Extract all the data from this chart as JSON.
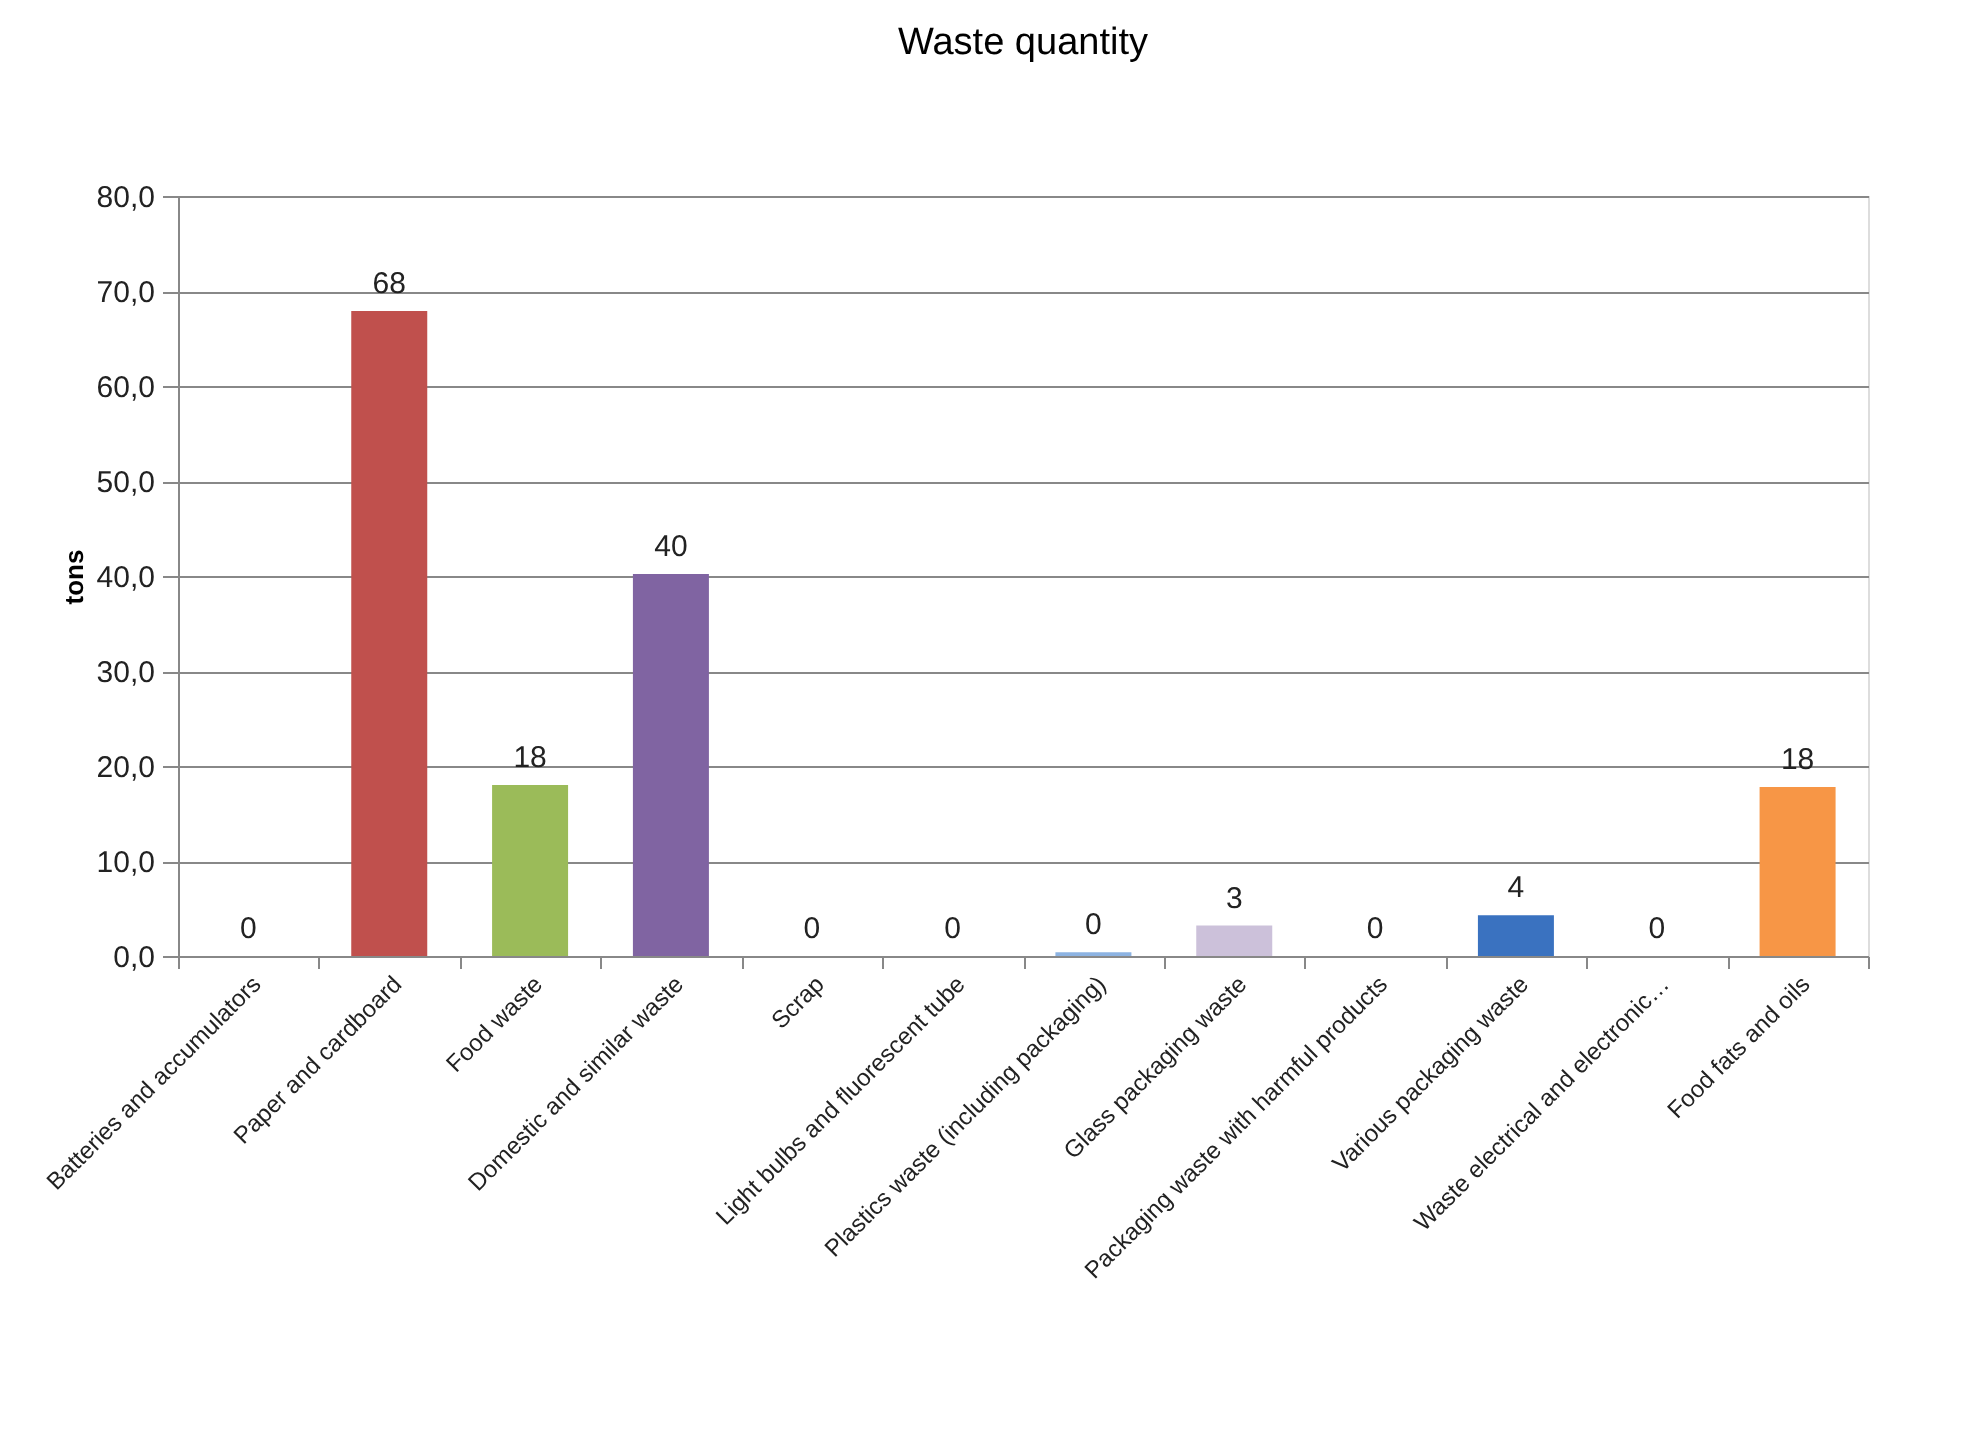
{
  "chart_data": {
    "type": "bar",
    "title": "Waste quantity",
    "ylabel": "tons",
    "categories": [
      "Batteries and accumulators",
      "Paper and cardboard",
      "Food waste",
      "Domestic and similar waste",
      "Scrap",
      "Light bulbs and fluorescent tube",
      "Plastics waste (including packaging)",
      "Glass packaging waste",
      "Packaging waste with harmful products",
      "Various packaging waste",
      "Waste electrical and electronic…",
      "Food fats and oils"
    ],
    "values": [
      0,
      67.9,
      18,
      40.2,
      0,
      0,
      0.4,
      3.2,
      0,
      4.3,
      0,
      17.8
    ],
    "value_labels": [
      "0",
      "68",
      "18",
      "40",
      "0",
      "0",
      "0",
      "3",
      "0",
      "4",
      "0",
      "18"
    ],
    "colors": [
      "#4f81bd",
      "#c0504d",
      "#9bbb59",
      "#8064a2",
      "#4bacc6",
      "#f79646",
      "#8db3e2",
      "#ccc1da",
      "#4f81bd",
      "#3a72c0",
      "#c0504d",
      "#f79646"
    ],
    "ylim": [
      0,
      80
    ],
    "yticks": [
      {
        "value": 0,
        "label": "0,0"
      },
      {
        "value": 10,
        "label": "10,0"
      },
      {
        "value": 20,
        "label": "20,0"
      },
      {
        "value": 30,
        "label": "30,0"
      },
      {
        "value": 40,
        "label": "40,0"
      },
      {
        "value": 50,
        "label": "50,0"
      },
      {
        "value": 60,
        "label": "60,0"
      },
      {
        "value": 70,
        "label": "70,0"
      },
      {
        "value": 80,
        "label": "80,0"
      }
    ],
    "grid": "y",
    "legend": false
  }
}
